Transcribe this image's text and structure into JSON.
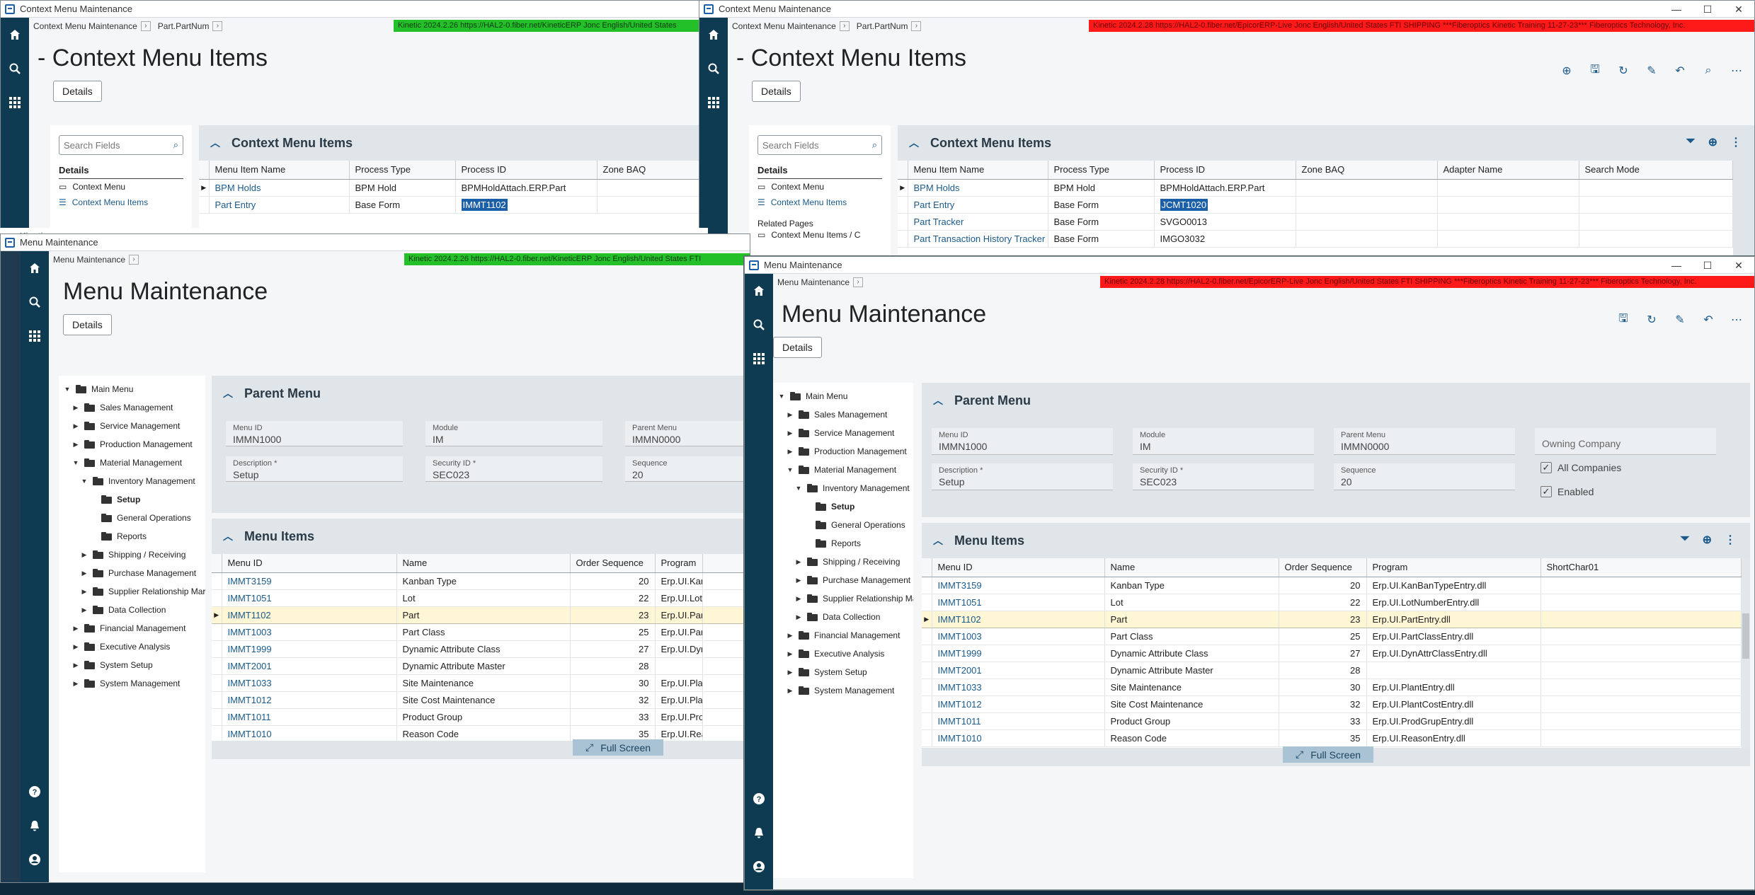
{
  "colors": {
    "rail": "#0f3b52",
    "accent": "#1b5a8a",
    "green_env": "#24c02a",
    "red_env": "#ff1a1a"
  },
  "tl": {
    "title": "Context Menu Maintenance",
    "crumbs": [
      "Context Menu Maintenance",
      "Part.PartNum"
    ],
    "env": "Kinetic 2024.2.26    https://HAL2-0.fiber.net/KineticERP    Jonc    English/United States",
    "page_title": "- Context Menu Items",
    "details_btn": "Details",
    "search_placeholder": "Search Fields",
    "nav_head": "Details",
    "nav": [
      "Context Menu",
      "Context Menu Items"
    ],
    "section": "Context Menu Items",
    "cols": [
      "Menu Item Name",
      "Process Type",
      "Process ID",
      "Zone BAQ"
    ],
    "rows": [
      [
        "BPM Holds",
        "BPM Hold",
        "BPMHoldAttach.ERP.Part",
        ""
      ],
      [
        "Part Entry",
        "Base Form",
        "IMMT1102",
        ""
      ]
    ]
  },
  "tr": {
    "title": "Context Menu Maintenance",
    "crumbs": [
      "Context Menu Maintenance",
      "Part.PartNum"
    ],
    "env": "Kinetic 2024.2.28    https://HAL2-0.fiber.net/EpicorERP-Live    Jonc    English/United States    FTI SHIPPING    ***Fiberoptics Kinetic Training 11-27-23***    Fiberoptics Technology, Inc.",
    "page_title": "- Context Menu Items",
    "details_btn": "Details",
    "search_placeholder": "Search Fields",
    "nav_head": "Details",
    "nav": [
      "Context Menu",
      "Context Menu Items"
    ],
    "related_head": "Related Pages",
    "related": [
      "Context Menu Items / C"
    ],
    "section": "Context Menu Items",
    "cols": [
      "Menu Item Name",
      "Process Type",
      "Process ID",
      "Zone BAQ",
      "Adapter Name",
      "Search Mode"
    ],
    "rows": [
      [
        "BPM Holds",
        "BPM Hold",
        "BPMHoldAttach.ERP.Part",
        "",
        "",
        ""
      ],
      [
        "Part Entry",
        "Base Form",
        "JCMT1020",
        "",
        "",
        ""
      ],
      [
        "Part Tracker",
        "Base Form",
        "SVGO0013",
        "",
        "",
        ""
      ],
      [
        "Part Transaction History Tracker",
        "Base Form",
        "IMGO3032",
        "",
        "",
        ""
      ]
    ]
  },
  "kinetic_label": "Kinetic",
  "bl": {
    "title": "Menu Maintenance",
    "crumbs": [
      "Menu Maintenance"
    ],
    "env": "Kinetic 2024.2.26    https://HAL2-0.fiber.net/KineticERP    Jonc    English/United States    FTI",
    "page_title": "Menu Maintenance",
    "details_btn": "Details",
    "parent_section": "Parent Menu",
    "fields": [
      {
        "label": "Menu ID",
        "value": "IMMN1000"
      },
      {
        "label": "Module",
        "value": "IM"
      },
      {
        "label": "Parent Menu",
        "value": "IMMN0000"
      },
      {
        "label": "Description *",
        "value": "Setup"
      },
      {
        "label": "Security ID *",
        "value": "SEC023"
      },
      {
        "label": "Sequence",
        "value": "20"
      }
    ],
    "items_section": "Menu Items",
    "cols": [
      "Menu ID",
      "Name",
      "Order Sequence",
      "Program"
    ],
    "rows": [
      [
        "IMMT3159",
        "Kanban Type",
        "20",
        "Erp.UI.KanBanTyp"
      ],
      [
        "IMMT1051",
        "Lot",
        "22",
        "Erp.UI.LotNumber"
      ],
      [
        "IMMT1102",
        "Part",
        "23",
        "Erp.UI.PartEntry.d"
      ],
      [
        "IMMT1003",
        "Part Class",
        "25",
        "Erp.UI.PartClassE"
      ],
      [
        "IMMT1999",
        "Dynamic Attribute Class",
        "27",
        "Erp.UI.DynAttrCla"
      ],
      [
        "IMMT2001",
        "Dynamic Attribute Master",
        "28",
        ""
      ],
      [
        "IMMT1033",
        "Site Maintenance",
        "30",
        "Erp.UI.PlantEntry."
      ],
      [
        "IMMT1012",
        "Site Cost Maintenance",
        "32",
        "Erp.UI.PlantCostE"
      ],
      [
        "IMMT1011",
        "Product Group",
        "33",
        "Erp.UI.ProdGrupE"
      ],
      [
        "IMMT1010",
        "Reason Code",
        "35",
        "Erp.UI.ReasonEntr"
      ]
    ],
    "full_screen": "Full Screen"
  },
  "br": {
    "title": "Menu Maintenance",
    "crumbs": [
      "Menu Maintenance"
    ],
    "env": "Kinetic 2024.2.28    https://HAL2-0.fiber.net/EpicorERP-Live    Jonc    English/United States    FTI SHIPPING    ***Fiberoptics Kinetic Training 11-27-23***    Fiberoptics Technology, Inc.",
    "page_title": "Menu Maintenance",
    "details_btn": "Details",
    "parent_section": "Parent Menu",
    "fields": [
      {
        "label": "Menu ID",
        "value": "IMMN1000"
      },
      {
        "label": "Module",
        "value": "IM"
      },
      {
        "label": "Parent Menu",
        "value": "IMMN0000"
      },
      {
        "label": "Description *",
        "value": "Setup"
      },
      {
        "label": "Security ID *",
        "value": "SEC023"
      },
      {
        "label": "Sequence",
        "value": "20"
      }
    ],
    "owning_company": "Owning Company",
    "all_companies": "All Companies",
    "enabled": "Enabled",
    "items_section": "Menu Items",
    "cols": [
      "Menu ID",
      "Name",
      "Order Sequence",
      "Program",
      "ShortChar01"
    ],
    "rows": [
      [
        "IMMT3159",
        "Kanban Type",
        "20",
        "Erp.UI.KanBanTypeEntry.dll",
        ""
      ],
      [
        "IMMT1051",
        "Lot",
        "22",
        "Erp.UI.LotNumberEntry.dll",
        ""
      ],
      [
        "IMMT1102",
        "Part",
        "23",
        "Erp.UI.PartEntry.dll",
        ""
      ],
      [
        "IMMT1003",
        "Part Class",
        "25",
        "Erp.UI.PartClassEntry.dll",
        ""
      ],
      [
        "IMMT1999",
        "Dynamic Attribute Class",
        "27",
        "Erp.UI.DynAttrClassEntry.dll",
        ""
      ],
      [
        "IMMT2001",
        "Dynamic Attribute Master",
        "28",
        "",
        ""
      ],
      [
        "IMMT1033",
        "Site Maintenance",
        "30",
        "Erp.UI.PlantEntry.dll",
        ""
      ],
      [
        "IMMT1012",
        "Site Cost Maintenance",
        "32",
        "Erp.UI.PlantCostEntry.dll",
        ""
      ],
      [
        "IMMT1011",
        "Product Group",
        "33",
        "Erp.UI.ProdGrupEntry.dll",
        ""
      ],
      [
        "IMMT1010",
        "Reason Code",
        "35",
        "Erp.UI.ReasonEntry.dll",
        ""
      ]
    ],
    "full_screen": "Full Screen"
  },
  "tree": [
    {
      "label": "Main Menu",
      "level": 0,
      "arrow": "down"
    },
    {
      "label": "Sales Management",
      "level": 1,
      "arrow": "right"
    },
    {
      "label": "Service Management",
      "level": 1,
      "arrow": "right"
    },
    {
      "label": "Production Management",
      "level": 1,
      "arrow": "right"
    },
    {
      "label": "Material Management",
      "level": 1,
      "arrow": "down"
    },
    {
      "label": "Inventory Management",
      "level": 2,
      "arrow": "down"
    },
    {
      "label": "Setup",
      "level": 3,
      "arrow": "",
      "bold": true
    },
    {
      "label": "General Operations",
      "level": 3,
      "arrow": ""
    },
    {
      "label": "Reports",
      "level": 3,
      "arrow": ""
    },
    {
      "label": "Shipping / Receiving",
      "level": 2,
      "arrow": "right"
    },
    {
      "label": "Purchase Management",
      "level": 2,
      "arrow": "right"
    },
    {
      "label": "Supplier Relationship Mar",
      "level": 2,
      "arrow": "right"
    },
    {
      "label": "Data Collection",
      "level": 2,
      "arrow": "right"
    },
    {
      "label": "Financial Management",
      "level": 1,
      "arrow": "right"
    },
    {
      "label": "Executive Analysis",
      "level": 1,
      "arrow": "right"
    },
    {
      "label": "System Setup",
      "level": 1,
      "arrow": "right"
    },
    {
      "label": "System Management",
      "level": 1,
      "arrow": "right"
    }
  ],
  "window_controls": [
    "—",
    "☐",
    "✕"
  ]
}
